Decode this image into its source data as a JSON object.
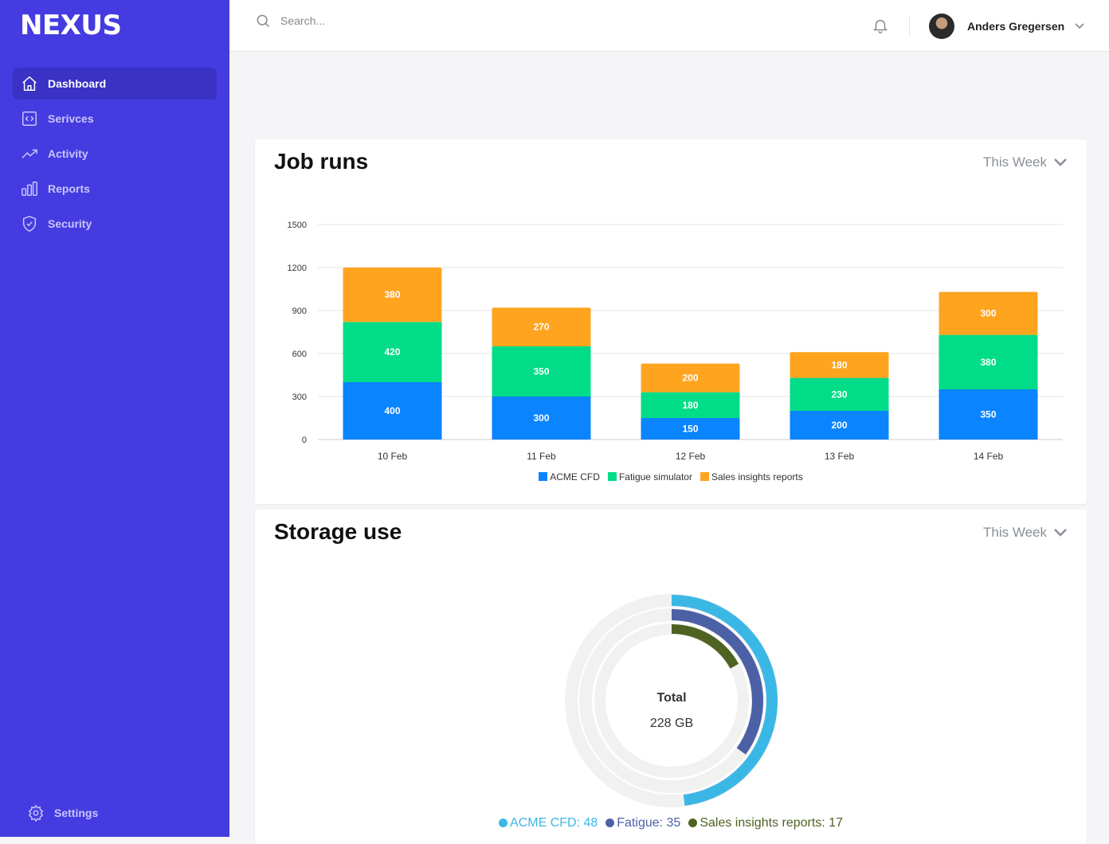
{
  "app": {
    "logo": "NEXUS"
  },
  "sidebar": {
    "items": [
      {
        "label": "Dashboard",
        "icon": "home-icon",
        "active": true
      },
      {
        "label": "Serivces",
        "icon": "code-icon"
      },
      {
        "label": "Activity",
        "icon": "trending-up-icon"
      },
      {
        "label": "Reports",
        "icon": "bar-chart-icon"
      },
      {
        "label": "Security",
        "icon": "shield-icon"
      }
    ],
    "settings": "Settings"
  },
  "header": {
    "search_placeholder": "Search...",
    "user": "Anders Gregersen"
  },
  "job_runs": {
    "title": "Job runs",
    "period": "This Week"
  },
  "storage": {
    "title": "Storage use",
    "period": "This Week",
    "total_label": "Total",
    "total_value": "228 GB"
  },
  "chart_data": [
    {
      "type": "bar",
      "stacked": true,
      "categories": [
        "10 Feb",
        "11 Feb",
        "12 Feb",
        "13 Feb",
        "14 Feb"
      ],
      "series": [
        {
          "name": "ACME CFD",
          "color": "#0a84ff",
          "values": [
            400,
            300,
            150,
            200,
            350
          ]
        },
        {
          "name": "Fatigue simulator",
          "color": "#00dc87",
          "values": [
            420,
            350,
            180,
            230,
            380
          ]
        },
        {
          "name": "Sales insights reports",
          "color": "#ffa41f",
          "values": [
            380,
            270,
            200,
            180,
            300
          ]
        }
      ],
      "yticks": [
        0,
        300,
        600,
        900,
        1200,
        1500
      ],
      "ylim": [
        0,
        1500
      ],
      "grid": true,
      "legend": "bottom"
    },
    {
      "type": "radialBar",
      "series": [
        {
          "name": "ACME CFD",
          "value": 48,
          "color": "#3bb7e6",
          "legend": "ACME CFD: 48"
        },
        {
          "name": "Fatigue",
          "value": 35,
          "color": "#4c60a6",
          "legend": "Fatigue: 35"
        },
        {
          "name": "Sales insights reports",
          "value": 17,
          "color": "#4e6222",
          "legend": "Sales insights reports: 17"
        }
      ],
      "max": 100,
      "legend": "bottom"
    }
  ]
}
